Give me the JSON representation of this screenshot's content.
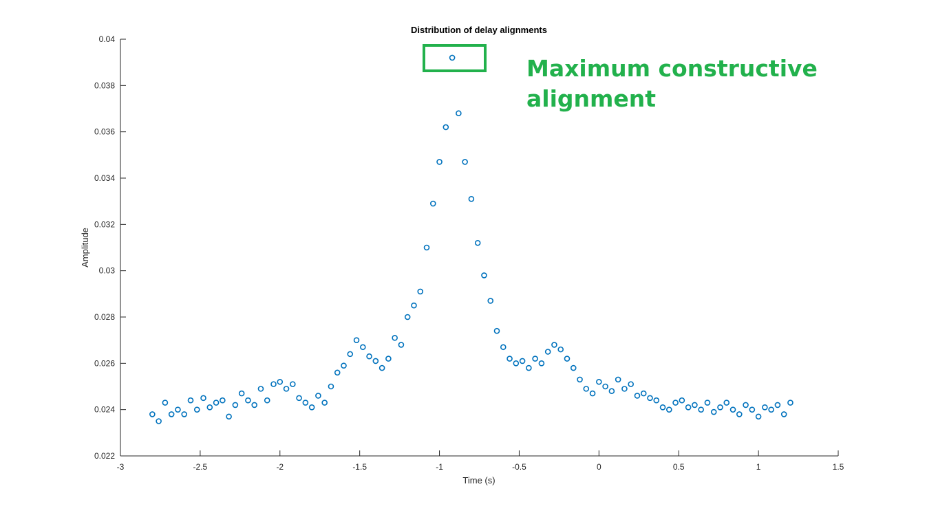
{
  "chart_data": {
    "type": "scatter",
    "title": "Distribution of delay alignments",
    "xlabel": "Time (s)",
    "ylabel": "Amplitude",
    "annotation": "Maximum constructive alignment",
    "color": "#0072bd",
    "x": [
      -2.8,
      -2.76,
      -2.72,
      -2.68,
      -2.64,
      -2.6,
      -2.56,
      -2.52,
      -2.48,
      -2.44,
      -2.4,
      -2.36,
      -2.32,
      -2.28,
      -2.24,
      -2.2,
      -2.16,
      -2.12,
      -2.08,
      -2.04,
      -2,
      -1.96,
      -1.92,
      -1.88,
      -1.84,
      -1.8,
      -1.76,
      -1.72,
      -1.68,
      -1.64,
      -1.6,
      -1.56,
      -1.52,
      -1.48,
      -1.44,
      -1.4,
      -1.36,
      -1.32,
      -1.28,
      -1.24,
      -1.2,
      -1.16,
      -1.12,
      -1.08,
      -1.04,
      -1,
      -0.96,
      -0.92,
      -0.88,
      -0.84,
      -0.8,
      -0.76,
      -0.72,
      -0.68,
      -0.64,
      -0.6,
      -0.56,
      -0.52,
      -0.48,
      -0.44,
      -0.4,
      -0.36,
      -0.32,
      -0.28,
      -0.24,
      -0.2,
      -0.16,
      -0.12,
      -0.08,
      -0.04,
      0,
      0.04,
      0.08,
      0.12,
      0.16,
      0.2,
      0.24,
      0.28,
      0.32,
      0.36,
      0.4,
      0.44,
      0.48,
      0.52,
      0.56,
      0.6,
      0.64,
      0.68,
      0.72,
      0.76,
      0.8,
      0.84,
      0.88,
      0.92,
      0.96,
      1,
      1.04,
      1.08,
      1.12,
      1.16,
      1.2
    ],
    "values": [
      0.0238,
      0.0235,
      0.0243,
      0.0238,
      0.024,
      0.0238,
      0.0244,
      0.024,
      0.0245,
      0.0241,
      0.0243,
      0.0244,
      0.0237,
      0.0242,
      0.0247,
      0.0244,
      0.0242,
      0.0249,
      0.0244,
      0.0251,
      0.0252,
      0.0249,
      0.0251,
      0.0245,
      0.0243,
      0.0241,
      0.0246,
      0.0243,
      0.025,
      0.0256,
      0.0259,
      0.0264,
      0.027,
      0.0267,
      0.0263,
      0.0261,
      0.0258,
      0.0262,
      0.0271,
      0.0268,
      0.028,
      0.0285,
      0.0291,
      0.031,
      0.0329,
      0.0347,
      0.0362,
      0.0392,
      0.0368,
      0.0347,
      0.0331,
      0.0312,
      0.0298,
      0.0287,
      0.0274,
      0.0267,
      0.0262,
      0.026,
      0.0261,
      0.0258,
      0.0262,
      0.026,
      0.0265,
      0.0268,
      0.0266,
      0.0262,
      0.0258,
      0.0253,
      0.0249,
      0.0247,
      0.0252,
      0.025,
      0.0248,
      0.0253,
      0.0249,
      0.0251,
      0.0246,
      0.0247,
      0.0245,
      0.0244,
      0.0241,
      0.024,
      0.0243,
      0.0244,
      0.0241,
      0.0242,
      0.024,
      0.0243,
      0.0239,
      0.0241,
      0.0243,
      0.024,
      0.0238,
      0.0242,
      0.024,
      0.0237,
      0.0241,
      0.024,
      0.0242,
      0.0238,
      0.0243
    ],
    "xlim": [
      -3,
      1.5
    ],
    "xticks": [
      -3,
      -2.5,
      -2,
      -1.5,
      -1,
      -0.5,
      0,
      0.5,
      1,
      1.5
    ],
    "ylim": [
      0.022,
      0.04
    ],
    "yticks": [
      0.022,
      0.024,
      0.026,
      0.028,
      0.03,
      0.032,
      0.034,
      0.036,
      0.038,
      0.04
    ]
  }
}
